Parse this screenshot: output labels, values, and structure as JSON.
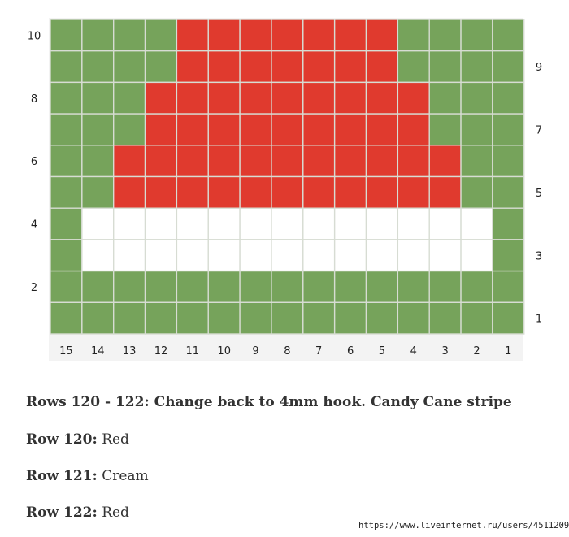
{
  "chart": {
    "colors": {
      "G": "#76a35b",
      "R": "#e03a2e",
      "W": "#ffffff"
    },
    "grid_line_color": "#d7dcd3",
    "columns": [
      "15",
      "14",
      "13",
      "12",
      "11",
      "10",
      "9",
      "8",
      "7",
      "6",
      "5",
      "4",
      "3",
      "2",
      "1"
    ],
    "left_labels": [
      "10",
      "8",
      "6",
      "4",
      "2"
    ],
    "right_labels": [
      "9",
      "7",
      "5",
      "3",
      "1"
    ],
    "rows": [
      "GGGGRRRRRRRGGGG",
      "GGGGRRRRRRRGGGG",
      "GGGRRRRRRRRRGGG",
      "GGGRRRRRRRRRGGG",
      "GGRRRRRRRRRRRGG",
      "GGRRRRRRRRRRRGG",
      "GWWWWWWWWWWWWWG",
      "GWWWWWWWWWWWWWG",
      "GGGGGGGGGGGGGGG",
      "GGGGGGGGGGGGGGG"
    ]
  },
  "instructions": {
    "heading": "Rows 120 - 122: Change back to 4mm hook. Candy Cane stripe",
    "rows": [
      {
        "label": "Row 120:",
        "value": "Red"
      },
      {
        "label": "Row 121:",
        "value": "Cream"
      },
      {
        "label": "Row 122:",
        "value": "Red"
      }
    ]
  },
  "watermark": "https://www.liveinternet.ru/users/4511209/"
}
